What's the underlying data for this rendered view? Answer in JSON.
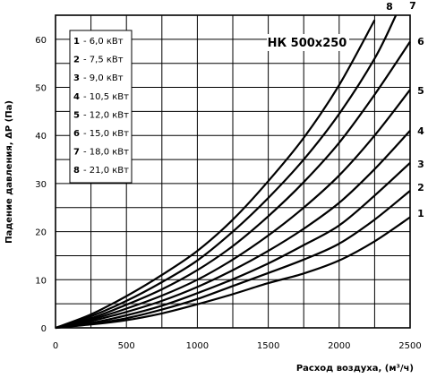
{
  "chart_data": {
    "type": "line",
    "model_label": "НК 500x250",
    "xlabel": "Расход воздуха, (м³/ч)",
    "ylabel": "Падение давления, ΔP (Па)",
    "xlim": [
      0,
      2500
    ],
    "ylim": [
      0,
      65
    ],
    "x_ticks": [
      "0",
      "500",
      "1000",
      "1500",
      "2000",
      "2500"
    ],
    "y_ticks": [
      "0",
      "10",
      "20",
      "30",
      "40",
      "50",
      "60"
    ],
    "grid": true,
    "legend": [
      {
        "num": "1",
        "text": "- 6,0 кВт"
      },
      {
        "num": "2",
        "text": "- 7,5 кВт"
      },
      {
        "num": "3",
        "text": "- 9,0 кВт"
      },
      {
        "num": "4",
        "text": "- 10,5 кВт"
      },
      {
        "num": "5",
        "text": "- 12,0 кВт"
      },
      {
        "num": "6",
        "text": "- 15,0 кВт"
      },
      {
        "num": "7",
        "text": "- 18,0 кВт"
      },
      {
        "num": "8",
        "text": "- 21,0 кВт"
      }
    ],
    "series": [
      {
        "name": "1",
        "x": [
          0,
          250,
          500,
          750,
          1000,
          1250,
          1500,
          1750,
          2000,
          2250,
          2500
        ],
        "y": [
          0,
          0.7,
          1.6,
          3.0,
          4.9,
          7.0,
          9.3,
          11.3,
          14.0,
          18.0,
          23.0
        ]
      },
      {
        "name": "2",
        "x": [
          0,
          250,
          500,
          750,
          1000,
          1250,
          1500,
          1750,
          2000,
          2250,
          2500
        ],
        "y": [
          0,
          0.8,
          2.0,
          3.8,
          6.0,
          8.7,
          11.4,
          14.2,
          17.5,
          22.5,
          28.5
        ]
      },
      {
        "name": "3",
        "x": [
          0,
          250,
          500,
          750,
          1000,
          1250,
          1500,
          1750,
          2000,
          2250,
          2500
        ],
        "y": [
          0,
          1.0,
          2.6,
          4.6,
          7.2,
          10.1,
          13.4,
          17.2,
          21.3,
          27.5,
          34.3
        ]
      },
      {
        "name": "4",
        "x": [
          0,
          250,
          500,
          750,
          1000,
          1250,
          1500,
          1750,
          2000,
          2250,
          2500
        ],
        "y": [
          0,
          1.4,
          3.3,
          5.6,
          8.5,
          12.0,
          16.0,
          20.6,
          26.0,
          33.0,
          41.0
        ]
      },
      {
        "name": "5",
        "x": [
          0,
          250,
          500,
          750,
          1000,
          1250,
          1500,
          1750,
          2000,
          2250,
          2500
        ],
        "y": [
          0,
          1.7,
          4.0,
          6.7,
          10.0,
          14.2,
          19.2,
          25.0,
          31.7,
          40.0,
          49.5
        ]
      },
      {
        "name": "6",
        "x": [
          0,
          250,
          500,
          750,
          1000,
          1250,
          1500,
          1750,
          2000,
          2250,
          2500
        ],
        "y": [
          0,
          2.0,
          4.8,
          8.0,
          12.0,
          17.0,
          23.2,
          30.3,
          38.5,
          48.5,
          59.5
        ]
      },
      {
        "name": "7",
        "x": [
          0,
          250,
          500,
          750,
          1000,
          1250,
          1500,
          1750,
          2000,
          2250,
          2400
        ],
        "y": [
          0,
          2.4,
          5.6,
          9.5,
          14.0,
          20.0,
          27.0,
          35.0,
          44.5,
          56.0,
          65.0
        ]
      },
      {
        "name": "8",
        "x": [
          0,
          250,
          500,
          750,
          1000,
          1250,
          1500,
          1750,
          2000,
          2250
        ],
        "y": [
          0,
          2.8,
          6.6,
          11.0,
          16.0,
          22.5,
          30.5,
          39.5,
          50.5,
          64.0
        ]
      }
    ]
  }
}
